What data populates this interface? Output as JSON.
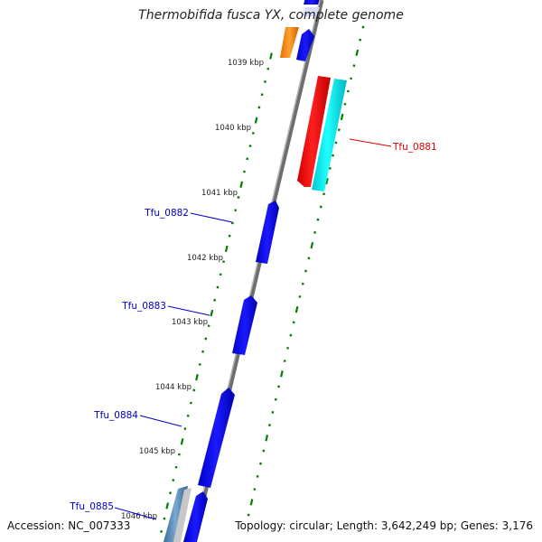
{
  "title": "Thermobifida fusca YX, complete genome",
  "accession": "Accession: NC_007333",
  "summary": "Topology: circular; Length: 3,642,249 bp; Genes: 3,176",
  "kbp_labels": [
    "1039 kbp",
    "1040 kbp",
    "1041 kbp",
    "1042 kbp",
    "1043 kbp",
    "1044 kbp",
    "1045 kbp",
    "1046 kbp"
  ],
  "gene_labels": {
    "tfu_0881": "Tfu_0881",
    "tfu_0882": "Tfu_0882",
    "tfu_0883": "Tfu_0883",
    "tfu_0884": "Tfu_0884",
    "tfu_0885": "Tfu_0885"
  },
  "colors": {
    "forward_cds": "#0000ee",
    "reverse_cds": "#ff0000",
    "highlight_cds": "#00e5ee",
    "orange_cds": "#ff8c00",
    "steel_cds": "#4682b4",
    "backbone": "#808080",
    "ticks": "#008000",
    "label_blue": "#0000cc",
    "label_red": "#dd0000"
  }
}
